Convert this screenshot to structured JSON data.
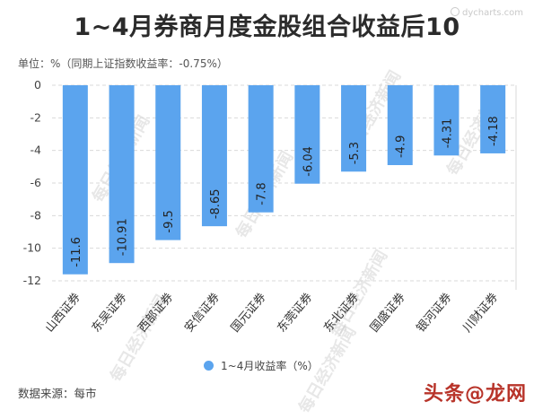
{
  "title": "1~4月券商月度金股组合收益后10",
  "unit_note": "单位：%（同期上证指数收益率：-0.75%）",
  "source": "数据来源：每市",
  "logo_text": "dycharts.com",
  "bottom_watermark": "头条@龙网",
  "watermark_text": "每日经济新闻",
  "colors": {
    "bar": "#5ba4ee",
    "grid": "#d9d9d9",
    "axis": "#666666"
  },
  "chart_data": {
    "type": "bar",
    "categories": [
      "山西证券",
      "东吴证券",
      "西部证券",
      "安信证券",
      "国元证券",
      "东莞证券",
      "东北证券",
      "国盛证券",
      "银河证券",
      "川财证券"
    ],
    "series": [
      {
        "name": "1~4月收益率（%）",
        "values": [
          -11.6,
          -10.91,
          -9.5,
          -8.65,
          -7.8,
          -6.04,
          -5.3,
          -4.9,
          -4.31,
          -4.18
        ]
      }
    ],
    "value_labels": [
      "-11.6",
      "-10.91",
      "-9.5",
      "-8.65",
      "-7.8",
      "-6.04",
      "-5.3",
      "-4.9",
      "-4.31",
      "-4.18"
    ],
    "ylim": [
      -12,
      0
    ],
    "yticks": [
      0,
      -2,
      -4,
      -6,
      -8,
      -10,
      -12
    ],
    "ytick_labels": [
      "0",
      "-2",
      "-4",
      "-6",
      "-8",
      "-10",
      "-12"
    ],
    "grid": true,
    "legend_position": "bottom"
  }
}
